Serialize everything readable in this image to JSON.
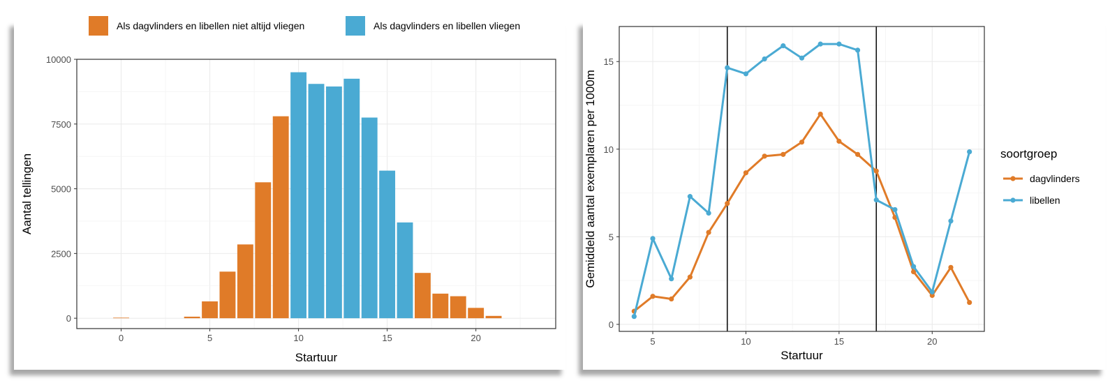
{
  "chart_data": [
    {
      "type": "bar",
      "xlabel": "Startuur",
      "ylabel": "Aantal tellingen",
      "xlim": [
        -2.5,
        24.5
      ],
      "ylim": [
        -400,
        10000
      ],
      "xticks": [
        0,
        5,
        10,
        15,
        20
      ],
      "yticks": [
        0,
        2500,
        5000,
        7500,
        10000
      ],
      "ytick_labels": [
        "0",
        "2500",
        "5000",
        "7500",
        "10000"
      ],
      "grid": true,
      "legend_position": "top",
      "legend": [
        {
          "label": "Als dagvlinders en libellen niet altijd vliegen",
          "color": "#e07b28"
        },
        {
          "label": "Als dagvlinders en libellen vliegen",
          "color": "#4aaad3"
        }
      ],
      "bars": [
        {
          "x": 0,
          "value": 0,
          "group": 0
        },
        {
          "x": 4,
          "value": 60,
          "group": 0
        },
        {
          "x": 5,
          "value": 650,
          "group": 0
        },
        {
          "x": 6,
          "value": 1800,
          "group": 0
        },
        {
          "x": 7,
          "value": 2850,
          "group": 0
        },
        {
          "x": 8,
          "value": 5250,
          "group": 0
        },
        {
          "x": 9,
          "value": 7800,
          "group": 0
        },
        {
          "x": 10,
          "value": 9500,
          "group": 1
        },
        {
          "x": 11,
          "value": 9050,
          "group": 1
        },
        {
          "x": 12,
          "value": 8950,
          "group": 1
        },
        {
          "x": 13,
          "value": 9250,
          "group": 1
        },
        {
          "x": 14,
          "value": 7750,
          "group": 1
        },
        {
          "x": 15,
          "value": 5700,
          "group": 1
        },
        {
          "x": 16,
          "value": 3700,
          "group": 1
        },
        {
          "x": 17,
          "value": 1750,
          "group": 0
        },
        {
          "x": 18,
          "value": 950,
          "group": 0
        },
        {
          "x": 19,
          "value": 850,
          "group": 0
        },
        {
          "x": 20,
          "value": 400,
          "group": 0
        },
        {
          "x": 21,
          "value": 90,
          "group": 0
        }
      ]
    },
    {
      "type": "line",
      "xlabel": "Startuur",
      "ylabel": "Gemiddeld aantal exemplaren per 1000m",
      "xlim": [
        3.2,
        22.8
      ],
      "ylim": [
        -0.4,
        17
      ],
      "xticks": [
        5,
        10,
        15,
        20
      ],
      "yticks": [
        0,
        5,
        10,
        15
      ],
      "grid": true,
      "vlines": [
        9,
        17
      ],
      "legend_position": "right",
      "legend_title": "soortgroep",
      "x": [
        4,
        5,
        6,
        7,
        8,
        9,
        10,
        11,
        12,
        13,
        14,
        15,
        16,
        17,
        18,
        19,
        20,
        21,
        22
      ],
      "series": [
        {
          "name": "dagvlinders",
          "color": "#e07b28",
          "values": [
            0.75,
            1.6,
            1.45,
            2.7,
            5.25,
            6.9,
            8.65,
            9.6,
            9.7,
            10.4,
            12.0,
            10.45,
            9.7,
            8.75,
            6.1,
            3.0,
            1.65,
            3.25,
            1.25
          ]
        },
        {
          "name": "libellen",
          "color": "#4aaad3",
          "values": [
            0.45,
            4.9,
            2.6,
            7.3,
            6.35,
            14.65,
            14.3,
            15.15,
            15.9,
            15.2,
            16.0,
            16.0,
            15.65,
            7.1,
            6.55,
            3.3,
            1.85,
            5.9,
            9.85
          ]
        }
      ]
    }
  ]
}
